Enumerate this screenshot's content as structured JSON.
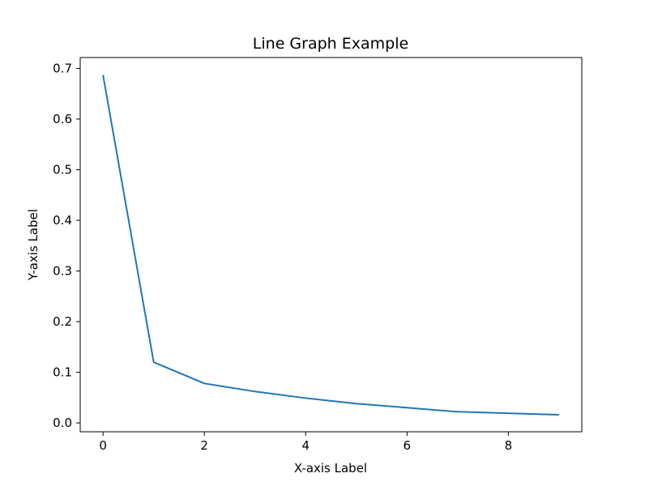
{
  "chart_data": {
    "type": "line",
    "title": "Line Graph Example",
    "xlabel": "X-axis Label",
    "ylabel": "Y-axis Label",
    "xlim": [
      -0.45,
      9.45
    ],
    "ylim": [
      -0.0175,
      0.7215
    ],
    "x_ticks": [
      0,
      2,
      4,
      6,
      8
    ],
    "x_tick_labels": [
      "0",
      "2",
      "4",
      "6",
      "8"
    ],
    "y_ticks": [
      0.0,
      0.1,
      0.2,
      0.3,
      0.4,
      0.5,
      0.6,
      0.7
    ],
    "y_tick_labels": [
      "0.0",
      "0.1",
      "0.2",
      "0.3",
      "0.4",
      "0.5",
      "0.6",
      "0.7"
    ],
    "grid": false,
    "series": [
      {
        "x": [
          0,
          1,
          2,
          3,
          4,
          5,
          6,
          7,
          8,
          9
        ],
        "y": [
          0.687,
          0.12,
          0.078,
          0.062,
          0.049,
          0.038,
          0.03,
          0.022,
          0.019,
          0.016
        ],
        "color": "#1f77b4"
      }
    ]
  }
}
